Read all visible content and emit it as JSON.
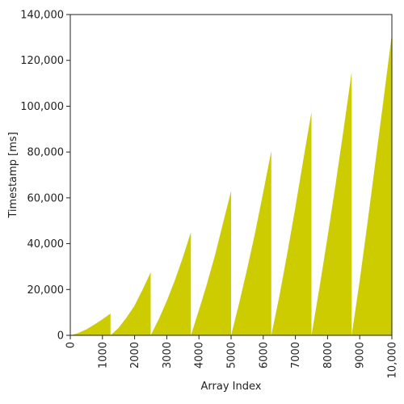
{
  "chart_data": {
    "type": "area",
    "title": "",
    "xlabel": "Array Index",
    "ylabel": "Timestamp [ms]",
    "xlim": [
      0,
      10000
    ],
    "ylim": [
      0,
      140000
    ],
    "x_ticks": [
      0,
      1000,
      2000,
      3000,
      4000,
      5000,
      6000,
      7000,
      8000,
      9000,
      10000
    ],
    "x_tick_labels": [
      "0",
      "1000",
      "2000",
      "3000",
      "4000",
      "5000",
      "6000",
      "7000",
      "8000",
      "9000",
      "10,000"
    ],
    "y_ticks": [
      0,
      20000,
      40000,
      60000,
      80000,
      100000,
      120000,
      140000
    ],
    "y_tick_labels": [
      "0",
      "20,000",
      "40,000",
      "60,000",
      "80,000",
      "100,000",
      "120,000",
      "140,000"
    ],
    "fill_color": "#cccc00",
    "grid": false,
    "series": [
      {
        "segments": [
          {
            "x": [
              0,
              250,
              500,
              750,
              1000,
              1250
            ],
            "y": [
              0,
              1000,
              2600,
              4700,
              7000,
              9500
            ]
          },
          {
            "x": [
              1250,
              1500,
              1750,
              2000,
              2250,
              2500
            ],
            "y": [
              0,
              3200,
              7800,
              13000,
              20000,
              27500
            ]
          },
          {
            "x": [
              2500,
              2750,
              3000,
              3250,
              3500,
              3750
            ],
            "y": [
              0,
              7000,
              15000,
              24000,
              34000,
              45000
            ]
          },
          {
            "x": [
              3750,
              4000,
              4250,
              4500,
              4750,
              5000
            ],
            "y": [
              0,
              11000,
              22500,
              35000,
              49000,
              63000
            ]
          },
          {
            "x": [
              5000,
              5250,
              5500,
              5750,
              6000,
              6250
            ],
            "y": [
              0,
              14000,
              29000,
              45000,
              62500,
              80500
            ]
          },
          {
            "x": [
              6250,
              6500,
              6750,
              7000,
              7250,
              7500
            ],
            "y": [
              0,
              17000,
              36000,
              56000,
              77000,
              97500
            ]
          },
          {
            "x": [
              7500,
              7750,
              8000,
              8250,
              8500,
              8750
            ],
            "y": [
              0,
              21000,
              43000,
              66000,
              90000,
              115000
            ]
          },
          {
            "x": [
              8750,
              9000,
              9250,
              9500,
              9750,
              10000
            ],
            "y": [
              0,
              24000,
              50000,
              77000,
              104000,
              131500
            ]
          }
        ]
      }
    ]
  }
}
